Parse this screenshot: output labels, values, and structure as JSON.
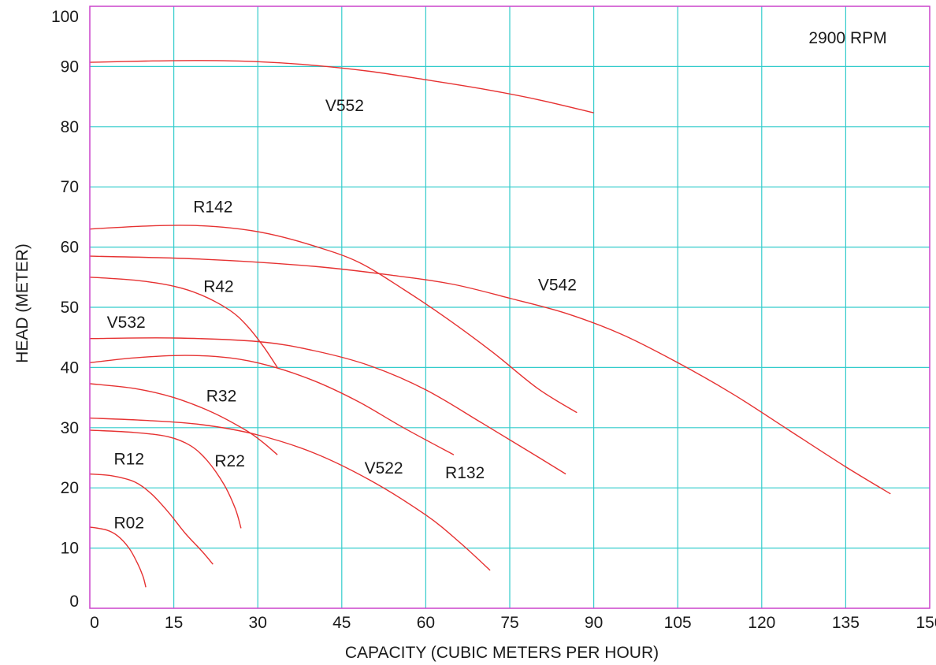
{
  "chart_data": {
    "type": "line",
    "title": "",
    "annotation": "2900 RPM",
    "xlabel": "CAPACITY (CUBIC METERS PER HOUR)",
    "ylabel": "HEAD (METER)",
    "xlim": [
      0,
      150
    ],
    "ylim": [
      0,
      100
    ],
    "xticks": [
      0,
      15,
      30,
      45,
      60,
      75,
      90,
      105,
      120,
      135,
      150
    ],
    "yticks": [
      0,
      10,
      20,
      30,
      40,
      50,
      60,
      70,
      80,
      90,
      100
    ],
    "grid": true,
    "colors": {
      "grid": "#33cccc",
      "frame": "#cc44cc",
      "curve": "#e63232",
      "text": "#1a1a1a"
    },
    "series": [
      {
        "name": "V552",
        "points": [
          [
            0,
            90.7
          ],
          [
            10,
            90.9
          ],
          [
            20,
            91.0
          ],
          [
            30,
            90.8
          ],
          [
            40,
            90.2
          ],
          [
            50,
            89.2
          ],
          [
            60,
            87.8
          ],
          [
            70,
            86.3
          ],
          [
            80,
            84.5
          ],
          [
            90,
            82.3
          ]
        ]
      },
      {
        "name": "R142",
        "points": [
          [
            0,
            63.0
          ],
          [
            10,
            63.5
          ],
          [
            18,
            63.6
          ],
          [
            25,
            63.2
          ],
          [
            32,
            62.2
          ],
          [
            40,
            60.2
          ],
          [
            48,
            57.5
          ],
          [
            56,
            53.0
          ],
          [
            64,
            48.0
          ],
          [
            72,
            42.5
          ],
          [
            80,
            36.5
          ],
          [
            87,
            32.5
          ]
        ]
      },
      {
        "name": "V542",
        "points": [
          [
            0,
            58.5
          ],
          [
            20,
            58.0
          ],
          [
            40,
            56.8
          ],
          [
            55,
            55.2
          ],
          [
            65,
            53.8
          ],
          [
            75,
            51.5
          ],
          [
            85,
            49.0
          ],
          [
            95,
            45.5
          ],
          [
            105,
            40.8
          ],
          [
            115,
            35.5
          ],
          [
            125,
            29.5
          ],
          [
            135,
            23.5
          ],
          [
            143,
            19.0
          ]
        ]
      },
      {
        "name": "R42",
        "points": [
          [
            0,
            55.0
          ],
          [
            8,
            54.5
          ],
          [
            15,
            53.5
          ],
          [
            20,
            52.0
          ],
          [
            25,
            49.5
          ],
          [
            28,
            47.0
          ],
          [
            31,
            43.5
          ],
          [
            33.5,
            40.0
          ]
        ]
      },
      {
        "name": "V532",
        "points": [
          [
            0,
            44.8
          ],
          [
            15,
            44.9
          ],
          [
            30,
            44.3
          ],
          [
            40,
            42.8
          ],
          [
            50,
            40.3
          ],
          [
            60,
            36.3
          ],
          [
            70,
            30.8
          ],
          [
            78,
            26.3
          ],
          [
            85,
            22.3
          ]
        ]
      },
      {
        "name": "R132",
        "points": [
          [
            0,
            40.8
          ],
          [
            8,
            41.6
          ],
          [
            17,
            42.0
          ],
          [
            25,
            41.6
          ],
          [
            32,
            40.3
          ],
          [
            40,
            37.8
          ],
          [
            48,
            34.3
          ],
          [
            56,
            30.0
          ],
          [
            65,
            25.5
          ]
        ]
      },
      {
        "name": "R32",
        "points": [
          [
            0,
            37.3
          ],
          [
            8,
            36.5
          ],
          [
            15,
            35.0
          ],
          [
            22,
            32.5
          ],
          [
            28,
            29.5
          ],
          [
            31,
            27.5
          ],
          [
            33.5,
            25.5
          ]
        ]
      },
      {
        "name": "V522",
        "points": [
          [
            0,
            31.6
          ],
          [
            10,
            31.2
          ],
          [
            20,
            30.5
          ],
          [
            30,
            28.8
          ],
          [
            40,
            25.8
          ],
          [
            50,
            21.3
          ],
          [
            60,
            15.5
          ],
          [
            66,
            11.0
          ],
          [
            71.5,
            6.3
          ]
        ]
      },
      {
        "name": "R22",
        "points": [
          [
            0,
            29.6
          ],
          [
            8,
            29.2
          ],
          [
            14,
            28.5
          ],
          [
            18,
            27.0
          ],
          [
            21,
            24.5
          ],
          [
            24,
            20.5
          ],
          [
            26,
            16.5
          ],
          [
            27,
            13.3
          ]
        ]
      },
      {
        "name": "R12",
        "points": [
          [
            0,
            22.3
          ],
          [
            4,
            22.0
          ],
          [
            8,
            21.0
          ],
          [
            11,
            19.0
          ],
          [
            14,
            16.0
          ],
          [
            17,
            12.5
          ],
          [
            20,
            9.5
          ],
          [
            22,
            7.3
          ]
        ]
      },
      {
        "name": "R02",
        "points": [
          [
            0,
            13.5
          ],
          [
            3,
            13.0
          ],
          [
            5,
            12.0
          ],
          [
            7,
            10.0
          ],
          [
            8.5,
            7.5
          ],
          [
            9.5,
            5.3
          ],
          [
            10,
            3.5
          ]
        ]
      }
    ],
    "labels": [
      {
        "text": "V552",
        "x": 45.5,
        "y": 83.5
      },
      {
        "text": "R142",
        "x": 22,
        "y": 66.7
      },
      {
        "text": "V542",
        "x": 83.5,
        "y": 53.7
      },
      {
        "text": "R42",
        "x": 23,
        "y": 53.5
      },
      {
        "text": "V532",
        "x": 6.5,
        "y": 47.5
      },
      {
        "text": "R32",
        "x": 23.5,
        "y": 35.3
      },
      {
        "text": "R12",
        "x": 7,
        "y": 24.8
      },
      {
        "text": "R22",
        "x": 25,
        "y": 24.5
      },
      {
        "text": "V522",
        "x": 52.5,
        "y": 23.3
      },
      {
        "text": "R132",
        "x": 67,
        "y": 22.5
      },
      {
        "text": "R02",
        "x": 7,
        "y": 14.2
      }
    ]
  }
}
